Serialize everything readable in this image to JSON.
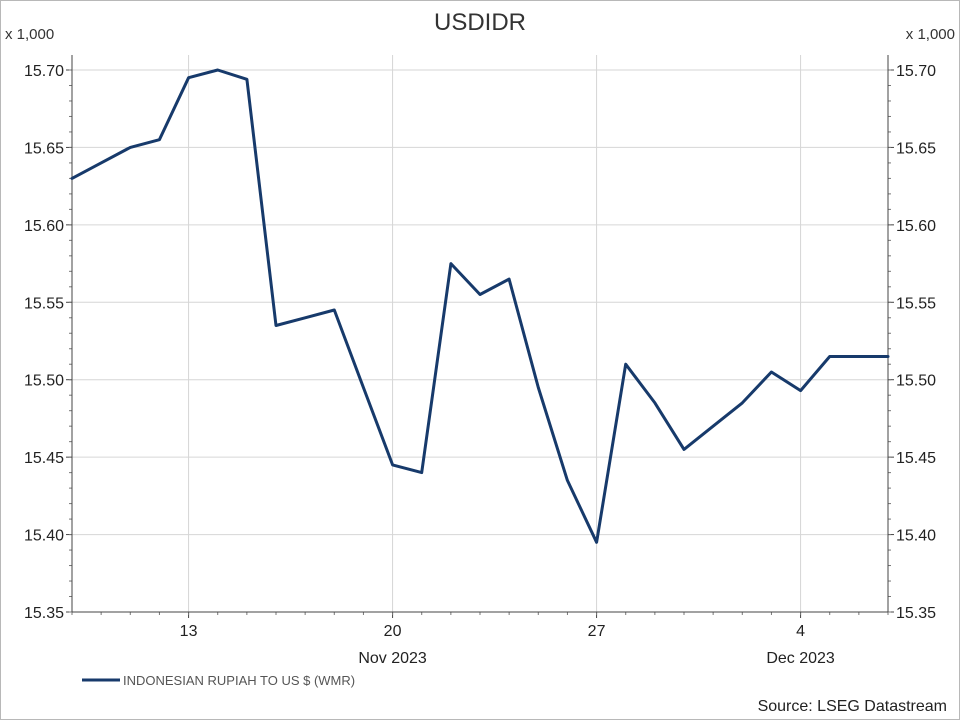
{
  "chart_data": {
    "type": "line",
    "title": "USDIDR",
    "unit_left": "x 1,000",
    "unit_right": "x 1,000",
    "ylim": [
      15.35,
      15.7
    ],
    "yticks": [
      "15.70",
      "15.65",
      "15.60",
      "15.55",
      "15.50",
      "15.45",
      "15.40",
      "15.35"
    ],
    "ytick_values": [
      15.7,
      15.65,
      15.6,
      15.55,
      15.5,
      15.45,
      15.4,
      15.35
    ],
    "xlim": [
      "2023-11-09",
      "2023-12-07"
    ],
    "xticks": [
      {
        "date": "2023-11-13",
        "label": "13"
      },
      {
        "date": "2023-11-20",
        "label": "20"
      },
      {
        "date": "2023-11-27",
        "label": "27"
      },
      {
        "date": "2023-12-04",
        "label": "4"
      }
    ],
    "month_labels": [
      {
        "date": "2023-11-20",
        "label": "Nov 2023"
      },
      {
        "date": "2023-12-04",
        "label": "Dec 2023"
      }
    ],
    "series": [
      {
        "name": "INDONESIAN RUPIAH TO US $ (WMR)",
        "color": "#173a6b",
        "x": [
          "2023-11-09",
          "2023-11-10",
          "2023-11-11",
          "2023-11-12",
          "2023-11-13",
          "2023-11-14",
          "2023-11-15",
          "2023-11-16",
          "2023-11-17",
          "2023-11-18",
          "2023-11-19",
          "2023-11-20",
          "2023-11-21",
          "2023-11-22",
          "2023-11-23",
          "2023-11-24",
          "2023-11-25",
          "2023-11-26",
          "2023-11-27",
          "2023-11-28",
          "2023-11-29",
          "2023-11-30",
          "2023-12-01",
          "2023-12-02",
          "2023-12-03",
          "2023-12-04",
          "2023-12-05",
          "2023-12-06",
          "2023-12-07"
        ],
        "values": [
          15.63,
          15.64,
          15.65,
          15.655,
          15.695,
          15.7,
          15.694,
          15.535,
          15.54,
          15.545,
          15.495,
          15.445,
          15.44,
          15.575,
          15.555,
          15.565,
          15.495,
          15.435,
          15.395,
          15.51,
          15.485,
          15.455,
          15.47,
          15.485,
          15.505,
          15.493,
          15.515,
          15.515,
          15.515
        ]
      }
    ],
    "grid": true,
    "legend_position": "bottom-left",
    "source": "Source: LSEG Datastream"
  }
}
